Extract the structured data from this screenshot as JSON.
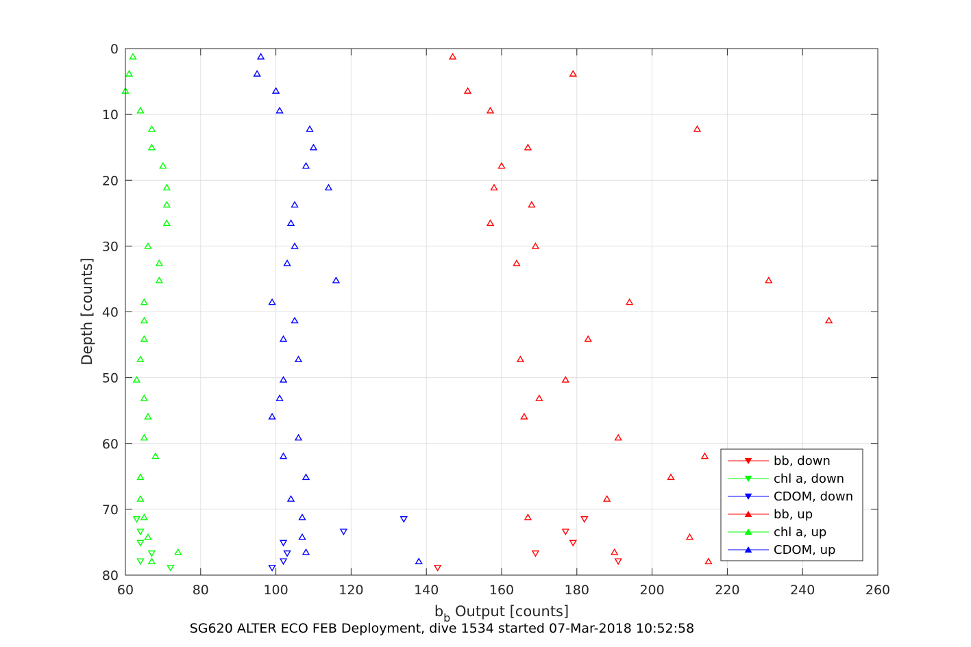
{
  "chart_data": {
    "type": "scatter",
    "caption": "SG620 ALTER ECO FEB Deployment, dive 1534 started 07-Mar-2018 10:52:58",
    "xlabel_main": "b",
    "xlabel_sub": "b",
    "xlabel_rest": " Output [counts]",
    "ylabel": "Depth [counts]",
    "xlim": [
      60,
      260
    ],
    "ylim": [
      0,
      80
    ],
    "y_reversed": true,
    "grid": true,
    "x_ticks": [
      "60",
      "80",
      "100",
      "120",
      "140",
      "160",
      "180",
      "200",
      "220",
      "240",
      "260"
    ],
    "y_ticks": [
      "0",
      "10",
      "20",
      "30",
      "40",
      "50",
      "60",
      "70",
      "80"
    ],
    "legend_position": "bottom-right",
    "series": [
      {
        "name": "bb, down",
        "color": "#ff0000",
        "marker": "triangle-down",
        "points": [
          [
            182,
            71.5
          ],
          [
            177,
            73.4
          ],
          [
            179,
            75.1
          ],
          [
            169,
            76.7
          ],
          [
            191,
            77.9
          ],
          [
            143,
            78.9
          ]
        ]
      },
      {
        "name": "chl a, down",
        "color": "#00ff00",
        "marker": "triangle-down",
        "points": [
          [
            63,
            71.5
          ],
          [
            64,
            73.4
          ],
          [
            64,
            75.1
          ],
          [
            67,
            76.7
          ],
          [
            64,
            77.9
          ],
          [
            72,
            78.9
          ]
        ]
      },
      {
        "name": "CDOM, down",
        "color": "#0000ff",
        "marker": "triangle-down",
        "points": [
          [
            134,
            71.5
          ],
          [
            118,
            73.4
          ],
          [
            102,
            75.1
          ],
          [
            103,
            76.7
          ],
          [
            102,
            77.9
          ],
          [
            99,
            78.9
          ]
        ]
      },
      {
        "name": "bb, up",
        "color": "#ff0000",
        "marker": "triangle-up",
        "points": [
          [
            147,
            1.2
          ],
          [
            179,
            3.8
          ],
          [
            151,
            6.4
          ],
          [
            157,
            9.4
          ],
          [
            212,
            12.2
          ],
          [
            167,
            15.0
          ],
          [
            160,
            17.8
          ],
          [
            158,
            21.1
          ],
          [
            168,
            23.7
          ],
          [
            157,
            26.5
          ],
          [
            169,
            30.0
          ],
          [
            164,
            32.6
          ],
          [
            231,
            35.2
          ],
          [
            194,
            38.5
          ],
          [
            247,
            41.3
          ],
          [
            183,
            44.1
          ],
          [
            165,
            47.2
          ],
          [
            177,
            50.3
          ],
          [
            170,
            53.1
          ],
          [
            166,
            55.9
          ],
          [
            191,
            59.1
          ],
          [
            214,
            61.9
          ],
          [
            205,
            65.1
          ],
          [
            188,
            68.4
          ],
          [
            167,
            71.2
          ],
          [
            210,
            74.2
          ],
          [
            190,
            76.5
          ],
          [
            215,
            77.9
          ]
        ]
      },
      {
        "name": "chl a, up",
        "color": "#00ff00",
        "marker": "triangle-up",
        "points": [
          [
            62,
            1.2
          ],
          [
            61,
            3.8
          ],
          [
            60,
            6.4
          ],
          [
            64,
            9.4
          ],
          [
            67,
            12.2
          ],
          [
            67,
            15.0
          ],
          [
            70,
            17.8
          ],
          [
            71,
            21.1
          ],
          [
            71,
            23.7
          ],
          [
            71,
            26.5
          ],
          [
            66,
            30.0
          ],
          [
            69,
            32.6
          ],
          [
            69,
            35.2
          ],
          [
            65,
            38.5
          ],
          [
            65,
            41.3
          ],
          [
            65,
            44.1
          ],
          [
            64,
            47.2
          ],
          [
            63,
            50.3
          ],
          [
            65,
            53.1
          ],
          [
            66,
            55.9
          ],
          [
            65,
            59.1
          ],
          [
            68,
            61.9
          ],
          [
            64,
            65.1
          ],
          [
            64,
            68.4
          ],
          [
            65,
            71.2
          ],
          [
            66,
            74.2
          ],
          [
            74,
            76.5
          ],
          [
            67,
            77.9
          ]
        ]
      },
      {
        "name": "CDOM, up",
        "color": "#0000ff",
        "marker": "triangle-up",
        "points": [
          [
            96,
            1.2
          ],
          [
            95,
            3.8
          ],
          [
            100,
            6.4
          ],
          [
            101,
            9.4
          ],
          [
            109,
            12.2
          ],
          [
            110,
            15.0
          ],
          [
            108,
            17.8
          ],
          [
            114,
            21.1
          ],
          [
            105,
            23.7
          ],
          [
            104,
            26.5
          ],
          [
            105,
            30.0
          ],
          [
            103,
            32.6
          ],
          [
            116,
            35.2
          ],
          [
            99,
            38.5
          ],
          [
            105,
            41.3
          ],
          [
            102,
            44.1
          ],
          [
            106,
            47.2
          ],
          [
            102,
            50.3
          ],
          [
            101,
            53.1
          ],
          [
            99,
            55.9
          ],
          [
            106,
            59.1
          ],
          [
            102,
            61.9
          ],
          [
            108,
            65.1
          ],
          [
            104,
            68.4
          ],
          [
            107,
            71.2
          ],
          [
            107,
            74.2
          ],
          [
            108,
            76.5
          ],
          [
            138,
            77.9
          ]
        ]
      }
    ]
  }
}
